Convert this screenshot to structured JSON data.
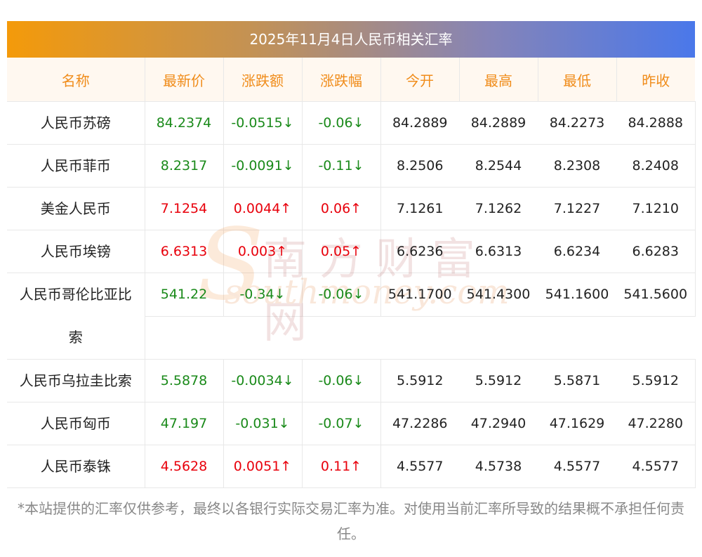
{
  "title": "2025年11月4日人民币相关汇率",
  "headers": [
    "名称",
    "最新价",
    "涨跌额",
    "涨跌幅",
    "今开",
    "最高",
    "最低",
    "昨收"
  ],
  "rows": [
    {
      "name": "人民币苏磅",
      "latest": "84.2374",
      "change": "-0.0515↓",
      "pct": "-0.06↓",
      "open": "84.2889",
      "high": "84.2889",
      "low": "84.2273",
      "prev": "84.2888",
      "dir": "down"
    },
    {
      "name": "人民币菲币",
      "latest": "8.2317",
      "change": "-0.0091↓",
      "pct": "-0.11↓",
      "open": "8.2506",
      "high": "8.2544",
      "low": "8.2308",
      "prev": "8.2408",
      "dir": "down"
    },
    {
      "name": "美金人民币",
      "latest": "7.1254",
      "change": "0.0044↑",
      "pct": "0.06↑",
      "open": "7.1261",
      "high": "7.1262",
      "low": "7.1227",
      "prev": "7.1210",
      "dir": "up"
    },
    {
      "name": "人民币埃镑",
      "latest": "6.6313",
      "change": "0.003↑",
      "pct": "0.05↑",
      "open": "6.6236",
      "high": "6.6313",
      "low": "6.6234",
      "prev": "6.6283",
      "dir": "up"
    },
    {
      "name": "人民币哥伦比亚比",
      "name_wrap": "索",
      "latest": "541.22",
      "change": "-0.34↓",
      "pct": "-0.06↓",
      "open": "541.1700",
      "high": "541.4300",
      "low": "541.1600",
      "prev": "541.5600",
      "dir": "down"
    },
    {
      "name": "人民币乌拉圭比索",
      "latest": "5.5878",
      "change": "-0.0034↓",
      "pct": "-0.06↓",
      "open": "5.5912",
      "high": "5.5912",
      "low": "5.5871",
      "prev": "5.5912",
      "dir": "down"
    },
    {
      "name": "人民币匈币",
      "latest": "47.197",
      "change": "-0.031↓",
      "pct": "-0.07↓",
      "open": "47.2286",
      "high": "47.2940",
      "low": "47.1629",
      "prev": "47.2280",
      "dir": "down"
    },
    {
      "name": "人民币泰铢",
      "latest": "4.5628",
      "change": "0.0051↑",
      "pct": "0.11↑",
      "open": "4.5577",
      "high": "4.5738",
      "low": "4.5577",
      "prev": "4.5577",
      "dir": "up"
    }
  ],
  "watermark": {
    "cn": "南方财富网",
    "en": "southmoney.com"
  },
  "note": "*本站提供的汇率仅供参考，最终以各银行实际交易汇率为准。对使用当前汇率所导致的结果概不承担任何责任。",
  "colors": {
    "up": "#e8000b",
    "down": "#1a8a1a",
    "header_text": "#f08c1a",
    "gradient_start": "#f49a0a",
    "gradient_end": "#4a78ea"
  }
}
